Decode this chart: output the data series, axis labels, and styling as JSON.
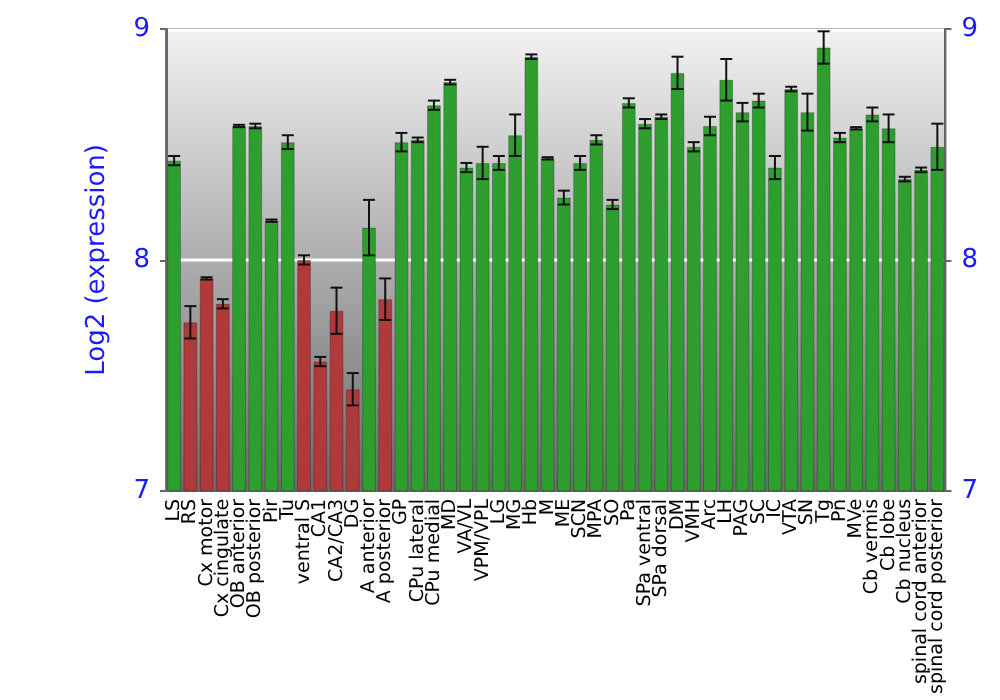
{
  "chart_data": {
    "type": "bar",
    "ylabel": "Log2 (expression)",
    "categories": [
      "LS",
      "RS",
      "Cx motor",
      "Cx cingulate",
      "OB anterior",
      "OB posterior",
      "Pir",
      "Tu",
      "ventral S",
      "CA1",
      "CA2/CA3",
      "DG",
      "A anterior",
      "A posterior",
      "GP",
      "CPu lateral",
      "CPu medial",
      "MD",
      "VA/VL",
      "VPM/VPL",
      "LG",
      "MG",
      "Hb",
      "M",
      "ME",
      "SCN",
      "MPA",
      "SO",
      "Pa",
      "SPa ventral",
      "SPa dorsal",
      "DM",
      "VMH",
      "Arc",
      "LH",
      "PAG",
      "SC",
      "IC",
      "VTA",
      "SN",
      "Tg",
      "Pn",
      "MVe",
      "Cb vermis",
      "Cb lobe",
      "Cb nucleus",
      "spinal cord anterior",
      "spinal cord posterior"
    ],
    "values": [
      8.43,
      7.73,
      7.92,
      7.81,
      8.58,
      8.58,
      8.17,
      8.51,
      8.0,
      7.56,
      7.78,
      7.44,
      8.14,
      7.83,
      8.51,
      8.52,
      8.67,
      8.77,
      8.4,
      8.42,
      8.42,
      8.54,
      8.88,
      8.44,
      8.27,
      8.42,
      8.52,
      8.24,
      8.68,
      8.59,
      8.62,
      8.81,
      8.49,
      8.58,
      8.78,
      8.64,
      8.69,
      8.4,
      8.74,
      8.64,
      8.92,
      8.53,
      8.57,
      8.63,
      8.57,
      8.35,
      8.39,
      8.49
    ],
    "errors": [
      0.02,
      0.07,
      0.005,
      0.02,
      0.005,
      0.01,
      0.005,
      0.03,
      0.02,
      0.02,
      0.1,
      0.07,
      0.12,
      0.09,
      0.04,
      0.01,
      0.02,
      0.01,
      0.02,
      0.07,
      0.03,
      0.09,
      0.01,
      0.005,
      0.03,
      0.03,
      0.02,
      0.02,
      0.02,
      0.02,
      0.01,
      0.07,
      0.02,
      0.04,
      0.09,
      0.04,
      0.03,
      0.05,
      0.01,
      0.08,
      0.07,
      0.02,
      0.005,
      0.03,
      0.06,
      0.01,
      0.01,
      0.1
    ],
    "colors": [
      "#2e9e2e",
      "#b03a3a",
      "#b03a3a",
      "#b03a3a",
      "#2e9e2e",
      "#2e9e2e",
      "#2e9e2e",
      "#2e9e2e",
      "#b03a3a",
      "#b03a3a",
      "#b03a3a",
      "#b03a3a",
      "#2e9e2e",
      "#b03a3a",
      "#2e9e2e",
      "#2e9e2e",
      "#2e9e2e",
      "#2e9e2e",
      "#2e9e2e",
      "#2e9e2e",
      "#2e9e2e",
      "#2e9e2e",
      "#2e9e2e",
      "#2e9e2e",
      "#2e9e2e",
      "#2e9e2e",
      "#2e9e2e",
      "#2e9e2e",
      "#2e9e2e",
      "#2e9e2e",
      "#2e9e2e",
      "#2e9e2e",
      "#2e9e2e",
      "#2e9e2e",
      "#2e9e2e",
      "#2e9e2e",
      "#2e9e2e",
      "#2e9e2e",
      "#2e9e2e",
      "#2e9e2e",
      "#2e9e2e",
      "#2e9e2e",
      "#2e9e2e",
      "#2e9e2e",
      "#2e9e2e",
      "#2e9e2e",
      "#2e9e2e",
      "#2e9e2e"
    ],
    "ylim": [
      7,
      9
    ],
    "yticks": [
      7,
      8,
      9
    ],
    "y2lim": [
      7,
      9
    ],
    "y2ticks": [
      7,
      8,
      9
    ],
    "grid": "y"
  }
}
